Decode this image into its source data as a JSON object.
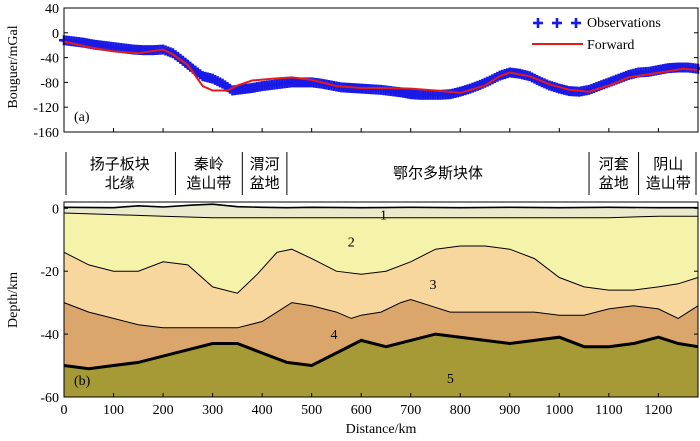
{
  "chart_data": [
    {
      "type": "line",
      "panel_label": "(a)",
      "ylabel": "Bouguer/mGal",
      "xlim": [
        0,
        1280
      ],
      "ylim": [
        -160,
        40
      ],
      "yticks": [
        40,
        0,
        -40,
        -80,
        -120,
        -160
      ],
      "ytick_labels": [
        "40",
        "0",
        "-40",
        "-80",
        "-120",
        "-160"
      ],
      "legend": [
        "Observations",
        "Forward"
      ],
      "series": [
        {
          "name": "Observations",
          "marker": "+",
          "color": "#1a1ae6",
          "x": [
            0,
            20,
            40,
            60,
            80,
            100,
            120,
            140,
            160,
            180,
            200,
            220,
            240,
            260,
            280,
            300,
            320,
            340,
            360,
            380,
            400,
            420,
            440,
            460,
            480,
            500,
            520,
            540,
            560,
            580,
            600,
            620,
            640,
            660,
            680,
            700,
            720,
            740,
            760,
            780,
            800,
            820,
            840,
            860,
            880,
            900,
            920,
            940,
            960,
            980,
            1000,
            1020,
            1040,
            1060,
            1080,
            1100,
            1120,
            1140,
            1160,
            1180,
            1200,
            1220,
            1240,
            1260,
            1280
          ],
          "y": [
            -12,
            -14,
            -16,
            -19,
            -21,
            -23,
            -25,
            -27,
            -28,
            -28,
            -27,
            -33,
            -45,
            -58,
            -70,
            -74,
            -82,
            -93,
            -91,
            -89,
            -86,
            -84,
            -82,
            -80,
            -80,
            -80,
            -82,
            -85,
            -88,
            -89,
            -90,
            -91,
            -92,
            -94,
            -96,
            -99,
            -100,
            -100,
            -100,
            -99,
            -95,
            -90,
            -84,
            -77,
            -69,
            -64,
            -66,
            -70,
            -78,
            -85,
            -90,
            -94,
            -95,
            -92,
            -86,
            -80,
            -74,
            -68,
            -64,
            -63,
            -60,
            -57,
            -56,
            -56,
            -58
          ]
        },
        {
          "name": "Forward",
          "color": "#e21b1b",
          "x": [
            0,
            50,
            100,
            150,
            200,
            220,
            250,
            280,
            300,
            330,
            350,
            380,
            420,
            460,
            500,
            550,
            600,
            650,
            700,
            750,
            800,
            850,
            880,
            900,
            940,
            980,
            1020,
            1060,
            1100,
            1140,
            1180,
            1220,
            1250,
            1280
          ],
          "y": [
            -14,
            -23,
            -30,
            -33,
            -27,
            -35,
            -52,
            -86,
            -93,
            -93,
            -85,
            -77,
            -74,
            -72,
            -76,
            -86,
            -89,
            -89,
            -90,
            -93,
            -97,
            -85,
            -70,
            -64,
            -70,
            -83,
            -92,
            -95,
            -85,
            -72,
            -67,
            -62,
            -58,
            -60
          ]
        }
      ]
    },
    {
      "type": "area",
      "panel_label": "(b)",
      "xlabel": "Distance/km",
      "ylabel": "Depth/km",
      "xlim": [
        0,
        1280
      ],
      "ylim": [
        -60,
        2
      ],
      "xticks": [
        0,
        100,
        200,
        300,
        400,
        500,
        600,
        700,
        800,
        900,
        1000,
        1100,
        1200
      ],
      "xtick_labels": [
        "0",
        "100",
        "200",
        "300",
        "400",
        "500",
        "600",
        "700",
        "800",
        "900",
        "1000",
        "1100",
        "1200"
      ],
      "yticks": [
        0,
        -20,
        -40,
        -60
      ],
      "ytick_labels": [
        "0",
        "-20",
        "-40",
        "-60"
      ],
      "tectonic_units": [
        {
          "name": "扬子板块\n北缘",
          "lines": [
            "扬子板块",
            "北缘"
          ],
          "x_range": [
            0,
            225
          ]
        },
        {
          "name": "秦岭\n造山带",
          "lines": [
            "秦岭",
            "造山带"
          ],
          "x_range": [
            225,
            360
          ]
        },
        {
          "name": "渭河\n盆地",
          "lines": [
            "渭河",
            "盆地"
          ],
          "x_range": [
            360,
            450
          ]
        },
        {
          "name": "鄂尔多斯块体",
          "lines": [
            "鄂尔多斯块体"
          ],
          "x_range": [
            450,
            1060
          ]
        },
        {
          "name": "河套\n盆地",
          "lines": [
            "河套",
            "盆地"
          ],
          "x_range": [
            1060,
            1160
          ]
        },
        {
          "name": "阴山\n造山带",
          "lines": [
            "阴山",
            "造山带"
          ],
          "x_range": [
            1160,
            1280
          ]
        }
      ],
      "layer_labels": [
        {
          "text": "1",
          "x": 645,
          "y": -2
        },
        {
          "text": "2",
          "x": 580,
          "y": -10.5
        },
        {
          "text": "3",
          "x": 745,
          "y": -24
        },
        {
          "text": "4",
          "x": 545,
          "y": -40
        },
        {
          "text": "5",
          "x": 780,
          "y": -54
        }
      ],
      "interfaces": [
        {
          "name": "surface",
          "x": [
            0,
            100,
            150,
            200,
            260,
            300,
            350,
            400,
            450,
            500,
            600,
            700,
            800,
            900,
            1000,
            1100,
            1200,
            1280
          ],
          "y": [
            0.3,
            0.2,
            0.8,
            0.4,
            1.0,
            1.3,
            0.5,
            0.3,
            0.2,
            0.3,
            0.2,
            0.3,
            0.2,
            0.3,
            0.2,
            0.3,
            0.2,
            0.2
          ]
        },
        {
          "name": "boundary 1/2",
          "x": [
            0,
            100,
            200,
            300,
            400,
            500,
            600,
            700,
            800,
            900,
            1000,
            1100,
            1200,
            1280
          ],
          "y": [
            -1.5,
            -2,
            -2.5,
            -3,
            -3,
            -3,
            -3,
            -3,
            -3,
            -3,
            -3,
            -3,
            -2.5,
            -2.5
          ]
        },
        {
          "name": "boundary 2/3",
          "x": [
            0,
            50,
            100,
            150,
            200,
            250,
            300,
            350,
            390,
            430,
            460,
            500,
            550,
            600,
            650,
            700,
            750,
            800,
            850,
            900,
            950,
            1000,
            1050,
            1100,
            1150,
            1200,
            1240,
            1280
          ],
          "y": [
            -14,
            -18,
            -20,
            -20,
            -17,
            -18,
            -25,
            -27,
            -21,
            -14,
            -13,
            -16,
            -20,
            -21,
            -20,
            -17,
            -13,
            -12,
            -12,
            -13,
            -16,
            -22,
            -25,
            -26,
            -26,
            -25,
            -24,
            -22
          ]
        },
        {
          "name": "boundary 3/4",
          "x": [
            0,
            50,
            100,
            150,
            200,
            250,
            300,
            350,
            400,
            430,
            460,
            500,
            550,
            580,
            600,
            640,
            680,
            700,
            740,
            780,
            800,
            850,
            900,
            950,
            1000,
            1050,
            1100,
            1150,
            1200,
            1240,
            1280
          ],
          "y": [
            -30,
            -33,
            -35,
            -37,
            -38,
            -38,
            -38,
            -38,
            -36,
            -33,
            -30,
            -31,
            -33,
            -35,
            -34,
            -33,
            -30,
            -29,
            -31,
            -33,
            -33,
            -33,
            -33,
            -33,
            -34,
            -34,
            -32,
            -31,
            -32,
            -35,
            -31
          ]
        },
        {
          "name": "boundary 4/5",
          "x": [
            0,
            50,
            100,
            150,
            200,
            250,
            300,
            350,
            400,
            450,
            500,
            550,
            600,
            650,
            700,
            750,
            800,
            850,
            900,
            950,
            1000,
            1050,
            1100,
            1150,
            1200,
            1240,
            1280
          ],
          "y": [
            -50,
            -51,
            -50,
            -49,
            -47,
            -45,
            -43,
            -43,
            -46,
            -49,
            -50,
            -46,
            -42,
            -44,
            -42,
            -40,
            -41,
            -42,
            -43,
            -42,
            -41,
            -44,
            -44,
            -43,
            -41,
            -43,
            -44
          ]
        }
      ],
      "layer_colors": [
        "#eaeacc",
        "#f5f2a9",
        "#f7d79e",
        "#dba66b",
        "#a69a36"
      ]
    }
  ]
}
